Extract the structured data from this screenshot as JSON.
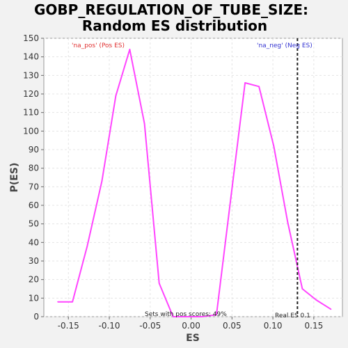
{
  "chart_data": {
    "type": "line",
    "title_line1": "GOBP_REGULATION_OF_TUBE_SIZE:",
    "title_line2": "Random ES distribution",
    "xlabel": "ES",
    "ylabel": "P(ES)",
    "xlim": [
      -0.18,
      0.185
    ],
    "ylim": [
      0,
      150
    ],
    "xticks": [
      -0.15,
      -0.1,
      -0.05,
      0.0,
      0.05,
      0.1,
      0.15
    ],
    "xtick_labels": [
      "-0.15",
      "-0.10",
      "-0.05",
      "0.00",
      "0.05",
      "0.10",
      "0.15"
    ],
    "yticks": [
      0,
      10,
      20,
      30,
      40,
      50,
      60,
      70,
      80,
      90,
      100,
      110,
      120,
      130,
      140,
      150
    ],
    "grid": true,
    "series": [
      {
        "color": "#ff44ff",
        "x": [
          -0.163,
          -0.145,
          -0.127,
          -0.109,
          -0.092,
          -0.075,
          -0.057,
          -0.039,
          -0.022,
          -0.004,
          0.013,
          0.031,
          0.048,
          0.066,
          0.083,
          0.101,
          0.118,
          0.136,
          0.153,
          0.171
        ],
        "y": [
          8,
          8,
          38,
          73,
          119,
          144,
          104,
          18,
          0,
          0,
          0,
          1,
          62,
          126,
          124,
          92,
          51,
          15,
          9,
          4
        ]
      }
    ],
    "real_es": {
      "x": 0.13,
      "color": "#222222",
      "label": "Real ES 0.1"
    },
    "annotations": {
      "pos_label": "'na_pos' (Pos ES)",
      "pos_color": "#e03030",
      "neg_label": "'na_neg' (Neg ES)",
      "neg_color": "#3030d0",
      "pos_scores": "Sets with pos scores: 49%"
    }
  }
}
